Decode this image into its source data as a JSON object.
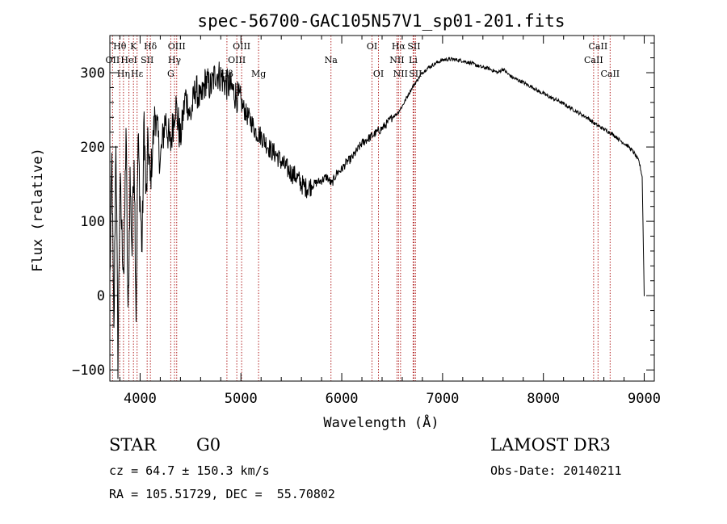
{
  "chart_data": {
    "type": "line",
    "title": "spec-56700-GAC105N57V1_sp01-201.fits",
    "xlabel": "Wavelength (Å)",
    "ylabel": "Flux (relative)",
    "xlim": [
      3700,
      9100
    ],
    "ylim": [
      -115,
      350
    ],
    "xticks": [
      4000,
      5000,
      6000,
      7000,
      8000,
      9000
    ],
    "xtick_labels": [
      "4000",
      "5000",
      "6000",
      "7000",
      "8000",
      "9000"
    ],
    "yticks": [
      -100,
      0,
      100,
      200,
      300
    ],
    "ytick_labels": [
      "−100",
      "0",
      "100",
      "200",
      "300"
    ],
    "line_color": "#000000",
    "marker_color": "#b22222",
    "series": [
      {
        "name": "flux",
        "x": [
          3700,
          3720,
          3740,
          3760,
          3780,
          3800,
          3820,
          3840,
          3860,
          3880,
          3900,
          3920,
          3940,
          3960,
          3980,
          4000,
          4020,
          4040,
          4060,
          4080,
          4100,
          4150,
          4200,
          4250,
          4300,
          4350,
          4400,
          4450,
          4500,
          4550,
          4600,
          4650,
          4700,
          4750,
          4800,
          4850,
          4900,
          4950,
          5000,
          5050,
          5100,
          5150,
          5200,
          5250,
          5300,
          5350,
          5400,
          5450,
          5500,
          5550,
          5600,
          5650,
          5700,
          5750,
          5800,
          5850,
          5900,
          5950,
          6000,
          6050,
          6100,
          6150,
          6200,
          6250,
          6300,
          6350,
          6400,
          6450,
          6500,
          6550,
          6600,
          6650,
          6700,
          6750,
          6800,
          6850,
          6900,
          6950,
          7000,
          7050,
          7100,
          7150,
          7200,
          7250,
          7300,
          7350,
          7400,
          7450,
          7500,
          7550,
          7600,
          7650,
          7700,
          7750,
          7800,
          7850,
          7900,
          7950,
          8000,
          8050,
          8100,
          8150,
          8200,
          8250,
          8300,
          8350,
          8400,
          8450,
          8500,
          8550,
          8600,
          8650,
          8700,
          8750,
          8800,
          8850,
          8900,
          8950,
          8980,
          9000
        ],
        "y": [
          20,
          180,
          -60,
          220,
          -90,
          150,
          80,
          30,
          230,
          -40,
          160,
          60,
          200,
          -20,
          210,
          130,
          60,
          240,
          120,
          210,
          150,
          250,
          180,
          240,
          200,
          260,
          210,
          270,
          240,
          280,
          260,
          290,
          280,
          300,
          295,
          285,
          280,
          270,
          260,
          245,
          235,
          220,
          215,
          205,
          195,
          190,
          180,
          172,
          165,
          160,
          150,
          145,
          148,
          152,
          155,
          160,
          150,
          165,
          170,
          180,
          185,
          195,
          205,
          210,
          215,
          220,
          225,
          232,
          240,
          245,
          255,
          268,
          280,
          290,
          300,
          306,
          310,
          314,
          317,
          318,
          318,
          317,
          316,
          314,
          312,
          309,
          307,
          306,
          303,
          300,
          305,
          298,
          293,
          290,
          287,
          283,
          280,
          275,
          272,
          268,
          265,
          262,
          258,
          254,
          250,
          246,
          242,
          238,
          232,
          228,
          224,
          220,
          216,
          210,
          205,
          200,
          192,
          180,
          160,
          0
        ]
      }
    ],
    "line_markers": [
      {
        "name": "OII",
        "x": 3727,
        "row": 1
      },
      {
        "name": "Hθ",
        "x": 3798,
        "row": 0
      },
      {
        "name": "Hη",
        "x": 3835,
        "row": 2
      },
      {
        "name": "HeI",
        "x": 3889,
        "row": 1
      },
      {
        "name": "Hε",
        "x": 3970,
        "row": 2
      },
      {
        "name": "K",
        "x": 3934,
        "row": 0
      },
      {
        "name": "SII",
        "x": 4070,
        "row": 1
      },
      {
        "name": "Hδ",
        "x": 4102,
        "row": 0
      },
      {
        "name": "G",
        "x": 4304,
        "row": 2
      },
      {
        "name": "Hγ",
        "x": 4341,
        "row": 1
      },
      {
        "name": "OIII",
        "x": 4363,
        "row": 0
      },
      {
        "name": "Hβ",
        "x": 4861,
        "row": 2
      },
      {
        "name": "OIII",
        "x": 4959,
        "row": 1
      },
      {
        "name": "OIII",
        "x": 5007,
        "row": 0
      },
      {
        "name": "Mg",
        "x": 5175,
        "row": 2
      },
      {
        "name": "Na",
        "x": 5893,
        "row": 1
      },
      {
        "name": "OI",
        "x": 6300,
        "row": 0
      },
      {
        "name": "OI",
        "x": 6364,
        "row": 2
      },
      {
        "name": "NII",
        "x": 6548,
        "row": 1
      },
      {
        "name": "Hα",
        "x": 6563,
        "row": 0
      },
      {
        "name": "NII",
        "x": 6583,
        "row": 2
      },
      {
        "name": "Li",
        "x": 6708,
        "row": 1
      },
      {
        "name": "SII",
        "x": 6716,
        "row": 0
      },
      {
        "name": "SII",
        "x": 6731,
        "row": 2
      },
      {
        "name": "CaII",
        "x": 8498,
        "row": 1
      },
      {
        "name": "CaII",
        "x": 8542,
        "row": 0
      },
      {
        "name": "CaII",
        "x": 8662,
        "row": 2
      }
    ]
  },
  "info": {
    "object_class": "STAR",
    "subclass": "G0",
    "survey": "LAMOST DR3",
    "cz": "cz = 64.7 ± 150.3 km/s",
    "obs_date": "Obs-Date: 20140211",
    "coords": "RA = 105.51729, DEC =  55.70802"
  }
}
